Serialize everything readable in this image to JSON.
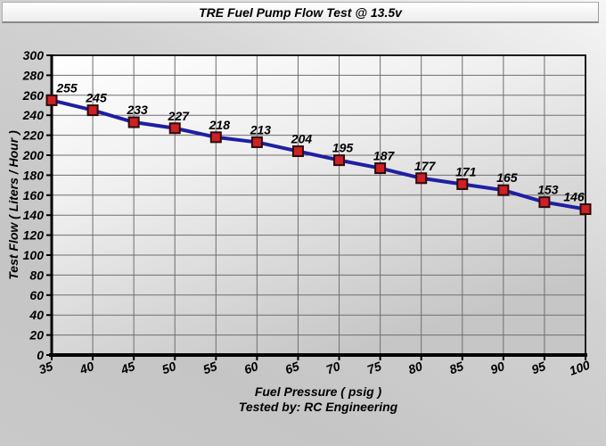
{
  "window": {
    "title": "TRE Fuel Pump Flow Test @ 13.5v"
  },
  "chart_data": {
    "type": "line",
    "title": "TRE Fuel Pump Flow Test @ 13.5v",
    "xlabel": "Fuel Pressure ( psig )",
    "ylabel": "Test Flow ( Liters / Hour )",
    "footnote": "Tested by: RC Engineering",
    "x": [
      35,
      40,
      45,
      50,
      55,
      60,
      65,
      70,
      75,
      80,
      85,
      90,
      95,
      100
    ],
    "values": [
      255,
      245,
      233,
      227,
      218,
      213,
      204,
      195,
      187,
      177,
      171,
      165,
      153,
      146
    ],
    "x_ticks": [
      35,
      40,
      45,
      50,
      55,
      60,
      65,
      70,
      75,
      80,
      85,
      90,
      95,
      100
    ],
    "y_ticks": [
      0,
      20,
      40,
      60,
      80,
      100,
      120,
      140,
      160,
      180,
      200,
      220,
      240,
      260,
      280,
      300
    ],
    "xlim": [
      35,
      100
    ],
    "ylim": [
      0,
      300
    ],
    "grid": true,
    "legend": "none",
    "colors": {
      "line": "#1f1fa2",
      "marker_fill": "#cc2127",
      "marker_outline": "#2e0a0a",
      "gridline": "#6e6e6e",
      "axis": "#000000",
      "plot_border": "#1c1c1c"
    }
  }
}
